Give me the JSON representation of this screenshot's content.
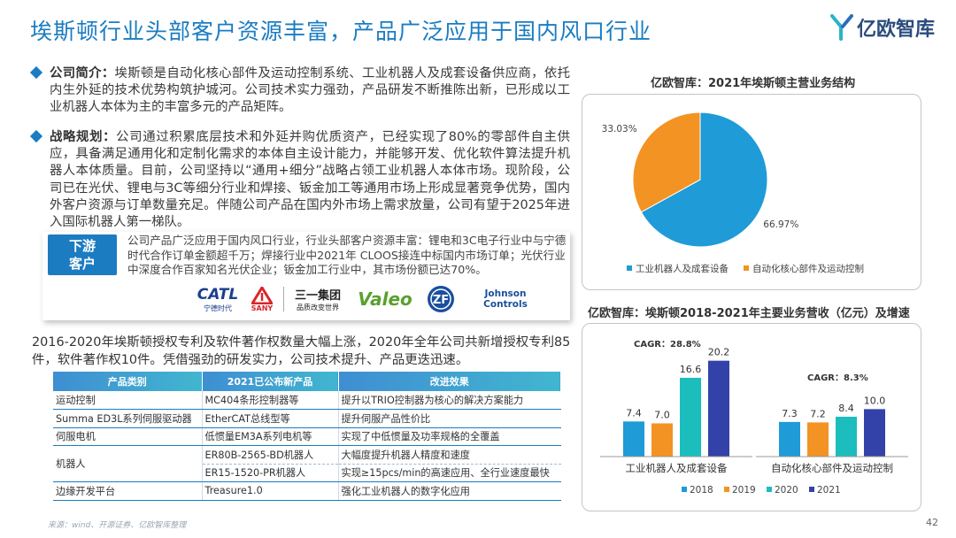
{
  "page": {
    "title": "埃斯顿行业头部客户资源丰富，产品广泛应用于国内风口行业",
    "logo_text": "亿欧智库",
    "page_number": "42",
    "source": "来源：wind、开源证券、亿欧智库整理"
  },
  "intro": {
    "company_label": "公司简介：",
    "company_text": "埃斯顿是自动化核心部件及运动控制系统、工业机器人及成套设备供应商，依托内生外延的技术优势构筑护城河。公司技术实力强劲，产品研发不断推陈出新，已形成以工业机器人本体为主的丰富多元的产品矩阵。",
    "strategy_label": "战略规划：",
    "strategy_text": "公司通过积累底层技术和外延并购优质资产，已经实现了80%的零部件自主供应，具备满足通用化和定制化需求的本体自主设计能力，并能够开发、优化软件算法提升机器人本体质量。目前，公司坚持以“通用+细分”战略占领工业机器人本体市场。现阶段，公司已在光伏、锂电与3C等细分行业和焊接、钣金加工等通用市场上形成显著竞争优势，国内外客户资源与订单数量充足。伴随公司产品在国内外市场上需求放量，公司有望于2025年进入国际机器人第一梯队。"
  },
  "customers": {
    "tag_line1": "下游",
    "tag_line2": "客户",
    "text": "公司产品广泛应用于国内风口行业，行业头部客户资源丰富：锂电和3C电子行业中与宁德时代合作订单金额超千万；焊接行业中2021年 CLOOS接连中标国内市场订单；光伏行业中深度合作百家知名光伏企业；钣金加工行业中，其市场份额已达70%。",
    "logos": [
      {
        "name": "CATL",
        "sub": "宁德时代"
      },
      {
        "name": "SANY",
        "sub": ""
      },
      {
        "name": "三一集团",
        "sub": "品质改变世界"
      },
      {
        "name": "Valeo",
        "sub": ""
      },
      {
        "name": "ZF",
        "sub": ""
      },
      {
        "name": "Johnson",
        "sub": "Controls"
      }
    ]
  },
  "patent_text": "2016-2020年埃斯顿授权专利及软件著作权数量大幅上涨，2020年全年公司共新增授权专利85件，软件著作权10件。凭借强劲的研发实力，公司技术提升、产品更迭迅速。",
  "table": {
    "headers": [
      "产品类别",
      "2021已公布新产品",
      "改进效果"
    ],
    "rows": [
      [
        "运动控制",
        "MC404条形控制器等",
        "提升以TRIO控制器为核心的解决方案能力"
      ],
      [
        "Summa ED3L系列伺服驱动器",
        "EtherCAT总线型等",
        "提升伺服产品性价比"
      ],
      [
        "伺服电机",
        "低惯量EM3A系列电机等",
        "实现了中低惯量及功率规格的全覆盖"
      ],
      [
        "机器人",
        "ER80B-2565-BD机器人",
        "大幅度提升机器人精度和速度"
      ],
      [
        "",
        "ER15-1520-PR机器人",
        "实现≥15pcs/min的高速应用、全行业速度最快"
      ],
      [
        "边缘开发平台",
        "Treasure1.0",
        "强化工业机器人的数字化应用"
      ]
    ]
  },
  "chart_data": [
    {
      "type": "pie",
      "title": "亿欧智库：2021年埃斯顿主营业务结构",
      "slices": [
        {
          "label": "工业机器人及成套设备",
          "value": 66.97,
          "display": "66.97%",
          "color": "#1f9bd7"
        },
        {
          "label": "自动化核心部件及运动控制",
          "value": 33.03,
          "display": "33.03%",
          "color": "#f39324"
        }
      ],
      "legend_position": "bottom"
    },
    {
      "type": "bar",
      "title": "亿欧智库：埃斯顿2018-2021年主要业务营收（亿元）及增速",
      "categories": [
        "工业机器人及成套设备",
        "自动化核心部件及运动控制"
      ],
      "series": [
        {
          "name": "2018",
          "values": [
            7.4,
            7.3
          ],
          "color": "#1f9bd7"
        },
        {
          "name": "2019",
          "values": [
            7.0,
            7.2
          ],
          "color": "#f39324"
        },
        {
          "name": "2020",
          "values": [
            16.6,
            8.4
          ],
          "color": "#1bbdbd"
        },
        {
          "name": "2021",
          "values": [
            20.2,
            10.0
          ],
          "color": "#3342a8"
        }
      ],
      "value_labels": [
        [
          "7.4",
          "7.0",
          "16.6",
          "20.2"
        ],
        [
          "7.3",
          "7.2",
          "8.4",
          "10.0"
        ]
      ],
      "annotations": [
        "CAGR：28.8%",
        "CAGR：8.3%"
      ],
      "ylim": [
        0,
        22
      ],
      "legend_position": "bottom",
      "grid": false
    }
  ]
}
